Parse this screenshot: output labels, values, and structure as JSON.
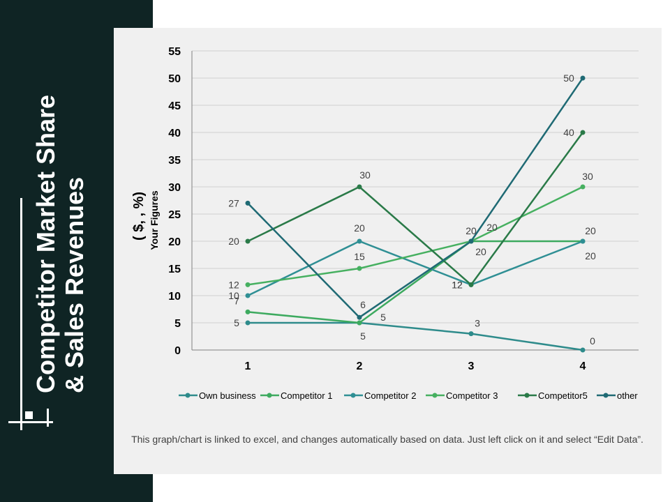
{
  "slide": {
    "title_line1": "Competitor Market Share",
    "title_line2": "& Sales Revenues",
    "footer_note": "This graph/chart is linked to excel, and changes automatically  based on data. Just left click on it and select “Edit Data”."
  },
  "colors": {
    "sidebar": "#0f2424",
    "panel": "#f0f0f0",
    "own_business": "#2e8b8b",
    "competitor_1": "#3daa5f",
    "competitor_2": "#2f8f94",
    "competitor_3": "#46b060",
    "competitor_5": "#2a7a48",
    "other": "#1f6a74"
  },
  "chart_data": {
    "type": "line",
    "title": "",
    "xlabel": "",
    "ylabel_line1": "( $, , %)",
    "ylabel_line2": "Your Figures",
    "categories": [
      "1",
      "2",
      "3",
      "4"
    ],
    "ylim": [
      0,
      55
    ],
    "yticks": [
      0,
      5,
      10,
      15,
      20,
      25,
      30,
      35,
      40,
      45,
      50,
      55
    ],
    "grid": true,
    "legend_position": "bottom",
    "series": [
      {
        "name": "Own business",
        "values": [
          5,
          5,
          3,
          0
        ],
        "color": "#2e8b8b",
        "labels": [
          "5",
          "5",
          "3",
          "0"
        ]
      },
      {
        "name": "Competitor 1",
        "values": [
          7,
          5,
          20,
          20
        ],
        "color": "#3daa5f",
        "labels": [
          "7",
          "5",
          "20",
          "20"
        ]
      },
      {
        "name": "Competitor 2",
        "values": [
          10,
          20,
          12,
          20
        ],
        "color": "#2f8f94",
        "labels": [
          "10",
          "20",
          "12",
          "20"
        ]
      },
      {
        "name": "Competitor 3",
        "values": [
          12,
          15,
          20,
          30
        ],
        "color": "#46b060",
        "labels": [
          "12",
          "15",
          "20",
          "30"
        ]
      },
      {
        "name": "Competitor5",
        "values": [
          20,
          30,
          12,
          40
        ],
        "color": "#2a7a48",
        "labels": [
          "20",
          "30",
          "12",
          "40"
        ]
      },
      {
        "name": "other",
        "values": [
          27,
          6,
          20,
          50
        ],
        "color": "#1f6a74",
        "labels": [
          "27",
          "6",
          "20",
          "50"
        ]
      }
    ]
  }
}
